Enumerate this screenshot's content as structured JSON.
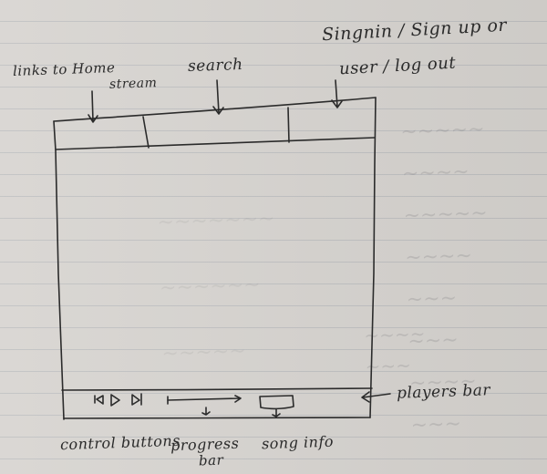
{
  "annotations": {
    "signin": "Singnin / Sign up or",
    "user": "user / log out",
    "links": "links to Home",
    "stream": "stream",
    "search": "search",
    "player_bar": "players bar",
    "control_buttons": "control buttons",
    "progress": "progress",
    "bar": "bar",
    "song_info": "song info"
  },
  "colors": {
    "paper": "#d6d3cf",
    "ink": "#2b2b2b",
    "rule_lines": "#828c9b"
  },
  "icons": [
    "arrow-down-icon",
    "control-prev-icon",
    "control-play-icon",
    "control-next-icon",
    "progress-bar-line",
    "song-info-box"
  ]
}
